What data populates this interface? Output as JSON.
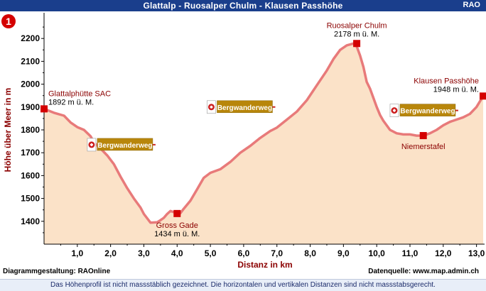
{
  "header": {
    "title": "Glattalp - Ruosalper Chulm - Klausen Passhöhe",
    "brand": "RAO"
  },
  "route_badge": "1",
  "chart_data": {
    "type": "area",
    "title": "Glattalp - Ruosalper Chulm - Klausen Passhöhe",
    "xlabel": "Distanz in km",
    "ylabel": "Höhe über Meer in m",
    "xlim": [
      0,
      13.2
    ],
    "ylim": [
      1300,
      2300
    ],
    "x_ticks": [
      1,
      2,
      3,
      4,
      5,
      6,
      7,
      8,
      9,
      10,
      11,
      12,
      13
    ],
    "x_tick_labels": [
      "1,0",
      "2,0",
      "3,0",
      "4,0",
      "5,0",
      "6,0",
      "7,0",
      "8,0",
      "9,0",
      "10,0",
      "11,0",
      "12,0",
      "13,0"
    ],
    "y_ticks": [
      1400,
      1500,
      1600,
      1700,
      1800,
      1900,
      2000,
      2100,
      2200
    ],
    "y_tick_labels": [
      "1400",
      "1500",
      "1600",
      "1700",
      "1800",
      "1900",
      "2000",
      "2100",
      "2200"
    ],
    "grid": false,
    "line_color": "#e87a7a",
    "fill_color": "#fbe2c8",
    "series": [
      {
        "x": [
          0.0,
          0.3,
          0.6,
          0.8,
          1.0,
          1.2,
          1.4,
          1.5,
          1.7,
          1.9,
          2.1,
          2.3,
          2.5,
          2.7,
          2.9,
          3.0,
          3.2,
          3.4,
          3.5,
          3.6,
          3.7,
          3.8,
          3.9,
          4.0,
          4.1,
          4.2,
          4.4,
          4.6,
          4.8,
          5.0,
          5.3,
          5.6,
          5.9,
          6.2,
          6.5,
          6.8,
          7.0,
          7.3,
          7.6,
          7.9,
          8.2,
          8.5,
          8.7,
          8.9,
          9.1,
          9.3,
          9.4,
          9.5,
          9.6,
          9.7,
          9.8,
          9.9,
          10.0,
          10.1,
          10.2,
          10.4,
          10.6,
          10.8,
          11.0,
          11.2,
          11.4,
          11.6,
          11.8,
          12.0,
          12.2,
          12.4,
          12.6,
          12.8,
          13.0,
          13.2
        ],
        "y": [
          1892,
          1875,
          1862,
          1832,
          1812,
          1800,
          1772,
          1745,
          1718,
          1688,
          1650,
          1595,
          1545,
          1500,
          1460,
          1432,
          1394,
          1396,
          1405,
          1415,
          1432,
          1445,
          1440,
          1434,
          1436,
          1455,
          1490,
          1540,
          1590,
          1612,
          1628,
          1660,
          1700,
          1730,
          1765,
          1795,
          1810,
          1845,
          1880,
          1930,
          1995,
          2060,
          2110,
          2150,
          2170,
          2178,
          2165,
          2125,
          2075,
          2010,
          1980,
          1940,
          1900,
          1865,
          1840,
          1800,
          1785,
          1780,
          1780,
          1775,
          1775,
          1785,
          1800,
          1820,
          1835,
          1845,
          1855,
          1870,
          1900,
          1948
        ]
      }
    ],
    "points": [
      {
        "name": "Glattalphütte SAC",
        "elev_label": "1892 m ü. M.",
        "x": 0.0,
        "y": 1892
      },
      {
        "name": "Gross Gade",
        "elev_label": "1434 m ü. M.",
        "x": 4.0,
        "y": 1434
      },
      {
        "name": "Ruosalper Chulm",
        "elev_label": "2178 m ü. M.",
        "x": 9.4,
        "y": 2178
      },
      {
        "name": "Niemerstafel",
        "elev_label": "",
        "x": 11.4,
        "y": 1775
      },
      {
        "name": "Klausen Passhöhe",
        "elev_label": "1948 m ü. M.",
        "x": 13.2,
        "y": 1948
      }
    ],
    "trail_signs": [
      {
        "label": "Bergwanderweg",
        "x": 1.6,
        "y": 1735
      },
      {
        "label": "Bergwanderweg",
        "x": 5.2,
        "y": 1900
      },
      {
        "label": "Bergwanderweg",
        "x": 10.7,
        "y": 1885
      }
    ]
  },
  "credits": {
    "left": "Diagrammgestaltung: RAOnline",
    "right": "Datenquelle: www.map.admin.ch"
  },
  "footer": "Das Höhenprofil ist nicht massstäblich gezeichnet. Die horizontalen und vertikalen Distanzen sind nicht massstabsgerecht."
}
